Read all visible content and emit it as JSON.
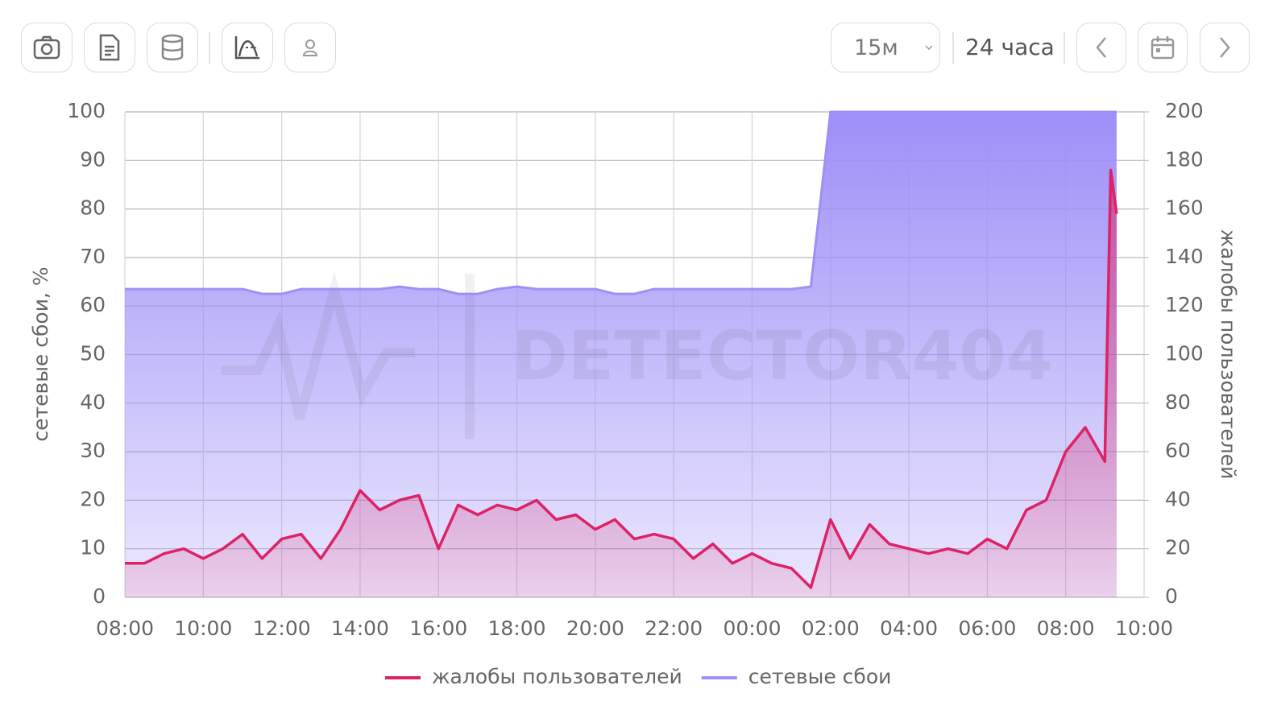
{
  "toolbar": {
    "interval": "15м",
    "range": "24 часа"
  },
  "chart_data": {
    "type": "line",
    "watermark": "DETECTOR404",
    "y_label": "сетевые сбои, %",
    "y2_label": "жалобы пользователей",
    "x": [
      0,
      0.5,
      1,
      1.5,
      2,
      2.5,
      3,
      3.5,
      4,
      4.5,
      5,
      5.5,
      6,
      6.5,
      7,
      7.5,
      8,
      8.5,
      9,
      9.5,
      10,
      10.5,
      11,
      11.5,
      12,
      12.5,
      13,
      13.5,
      14,
      14.5,
      15,
      15.5,
      16,
      16.5,
      17,
      17.5,
      18,
      18.5,
      19,
      19.5,
      20,
      20.5,
      21,
      21.5,
      22,
      22.5,
      23,
      23.5,
      24,
      24.5,
      25,
      25.15,
      25.3
    ],
    "xlim": [
      0,
      26
    ],
    "xticks": [
      {
        "value": 0,
        "label": "08:00"
      },
      {
        "value": 2,
        "label": "10:00"
      },
      {
        "value": 4,
        "label": "12:00"
      },
      {
        "value": 6,
        "label": "14:00"
      },
      {
        "value": 8,
        "label": "16:00"
      },
      {
        "value": 10,
        "label": "18:00"
      },
      {
        "value": 12,
        "label": "20:00"
      },
      {
        "value": 14,
        "label": "22:00"
      },
      {
        "value": 16,
        "label": "00:00"
      },
      {
        "value": 18,
        "label": "02:00"
      },
      {
        "value": 20,
        "label": "04:00"
      },
      {
        "value": 22,
        "label": "06:00"
      },
      {
        "value": 24,
        "label": "08:00"
      },
      {
        "value": 26,
        "label": "10:00"
      }
    ],
    "ylim": [
      0,
      100
    ],
    "yticks": [
      0,
      10,
      20,
      30,
      40,
      50,
      60,
      70,
      80,
      90,
      100
    ],
    "y2lim": [
      0,
      200
    ],
    "y2ticks": [
      0,
      20,
      40,
      60,
      80,
      100,
      120,
      140,
      160,
      180,
      200
    ],
    "grid": true,
    "series": [
      {
        "name": "жалобы пользователей",
        "color": "#dd2266",
        "axis": "y2",
        "values": [
          14,
          14,
          18,
          20,
          16,
          20,
          26,
          16,
          24,
          26,
          16,
          28,
          44,
          36,
          40,
          42,
          20,
          38,
          34,
          38,
          36,
          40,
          32,
          34,
          28,
          32,
          24,
          26,
          24,
          16,
          22,
          14,
          18,
          14,
          12,
          4,
          32,
          16,
          30,
          22,
          20,
          18,
          20,
          18,
          24,
          20,
          36,
          40,
          60,
          70,
          56,
          176,
          158
        ]
      },
      {
        "name": "сетевые сбои",
        "color": "#9d8ff7",
        "values": [
          63.5,
          63.5,
          63.5,
          63.5,
          63.5,
          63.5,
          63.5,
          62.5,
          62.5,
          63.5,
          63.5,
          63.5,
          63.5,
          63.5,
          64,
          63.5,
          63.5,
          62.5,
          62.5,
          63.5,
          64,
          63.5,
          63.5,
          63.5,
          63.5,
          62.5,
          62.5,
          63.5,
          63.5,
          63.5,
          63.5,
          63.5,
          63.5,
          63.5,
          63.5,
          64,
          100,
          100,
          100,
          100,
          100,
          100,
          100,
          100,
          100,
          100,
          100,
          100,
          100,
          100,
          100,
          100,
          100
        ]
      }
    ]
  }
}
